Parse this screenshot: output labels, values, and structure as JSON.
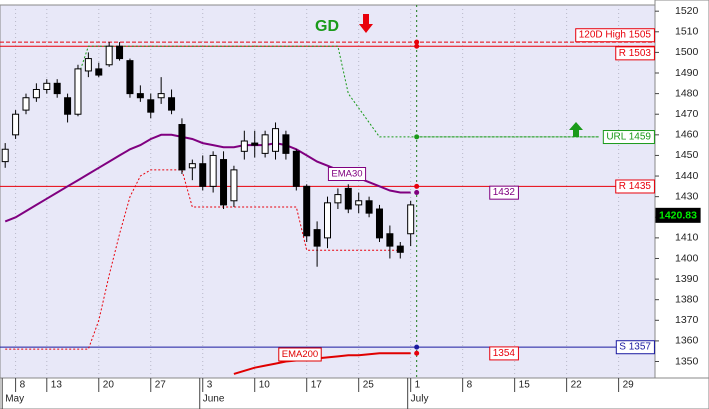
{
  "chart_data": {
    "type": "candlestick",
    "title": "GD",
    "categories": [
      null,
      "8",
      null,
      null,
      "13",
      null,
      null,
      null,
      null,
      "20",
      null,
      null,
      null,
      null,
      "27",
      null,
      null,
      null,
      null,
      "3",
      null,
      null,
      null,
      null,
      "10",
      null,
      null,
      null,
      null,
      "17",
      null,
      null,
      null,
      null,
      "25",
      null,
      null,
      null,
      null,
      "1",
      null,
      null,
      null,
      null,
      "8",
      null,
      null,
      null,
      null,
      "15",
      null,
      null,
      null,
      null,
      "22",
      null,
      null,
      null,
      null,
      "29",
      null,
      null,
      null
    ],
    "month_categories": [
      "May",
      null,
      null,
      null,
      null,
      null,
      null,
      null,
      null,
      null,
      null,
      null,
      null,
      null,
      null,
      null,
      null,
      null,
      null,
      "June",
      null,
      null,
      null,
      null,
      null,
      null,
      null,
      null,
      null,
      null,
      null,
      null,
      null,
      null,
      null,
      null,
      null,
      null,
      null,
      "July",
      null,
      null,
      null,
      null,
      null,
      null,
      null,
      null,
      null,
      null,
      null,
      null,
      null,
      null,
      null,
      null,
      null,
      null,
      null,
      null,
      null,
      null,
      null
    ],
    "open": [
      1447,
      1460,
      1472,
      1478,
      1482,
      1485,
      1478,
      1470,
      1491,
      1492,
      1494,
      1503,
      1496,
      1480,
      1477,
      1478,
      1478,
      1465,
      1444,
      1446,
      1435,
      1448,
      1428,
      1452,
      1456,
      1451,
      1452,
      1460,
      1452,
      1435,
      1414,
      1410,
      1427,
      1434,
      1426,
      1428,
      1424,
      1412,
      1406,
      1412,
      null,
      null,
      null,
      null,
      null,
      null,
      null,
      null,
      null,
      null,
      null,
      null,
      null,
      null,
      null,
      null,
      null,
      null,
      null,
      null,
      null,
      null,
      null
    ],
    "high": [
      1456,
      1472,
      1480,
      1485,
      1487,
      1487,
      1480,
      1494,
      1500,
      1495,
      1505,
      1505,
      1497,
      1484,
      1480,
      1488,
      1482,
      1468,
      1448,
      1450,
      1452,
      1452,
      1445,
      1462,
      1462,
      1462,
      1466,
      1462,
      1453,
      1436,
      1418,
      1430,
      1434,
      1436,
      1432,
      1430,
      1426,
      1416,
      1408,
      1428,
      null,
      null,
      null,
      null,
      null,
      null,
      null,
      null,
      null,
      null,
      null,
      null,
      null,
      null,
      null,
      null,
      null,
      null,
      null,
      null,
      null,
      null,
      null
    ],
    "low": [
      1444,
      1458,
      1470,
      1476,
      1480,
      1478,
      1466,
      1469,
      1488,
      1488,
      1493,
      1496,
      1478,
      1476,
      1468,
      1475,
      1470,
      1441,
      1438,
      1433,
      1432,
      1424,
      1425,
      1448,
      1449,
      1449,
      1448,
      1448,
      1433,
      1408,
      1396,
      1405,
      1424,
      1422,
      1422,
      1420,
      1408,
      1400,
      1400,
      1406,
      null,
      null,
      null,
      null,
      null,
      null,
      null,
      null,
      null,
      null,
      null,
      null,
      null,
      null,
      null,
      null,
      null,
      null,
      null,
      null,
      null,
      null,
      null
    ],
    "close": [
      1453,
      1470,
      1478,
      1482,
      1485,
      1480,
      1470,
      1492,
      1497,
      1489,
      1503,
      1497,
      1480,
      1478,
      1471,
      1480,
      1472,
      1443,
      1446,
      1435,
      1450,
      1426,
      1443,
      1457,
      1455,
      1460,
      1463,
      1451,
      1435,
      1411,
      1406,
      1427,
      1431,
      1424,
      1428,
      1422,
      1410,
      1406,
      1403,
      1426,
      null,
      null,
      null,
      null,
      null,
      null,
      null,
      null,
      null,
      null,
      null,
      null,
      null,
      null,
      null,
      null,
      null,
      null,
      null,
      null,
      null,
      null,
      null
    ],
    "up_color": "#ffffff",
    "down_color": "#000000",
    "lines": [
      {
        "name": "EMA30",
        "color": "#800080",
        "values": [
          1418,
          1420,
          1423,
          1426,
          1429,
          1432,
          1435,
          1438,
          1441,
          1444,
          1447,
          1450,
          1453,
          1455,
          1458,
          1460,
          1460,
          1459,
          1458,
          1456,
          1455,
          1454,
          1454,
          1455,
          1455,
          1455,
          1456,
          1455,
          1453,
          1450,
          1447,
          1445,
          1443,
          1441,
          1439,
          1437,
          1435,
          1433,
          1432,
          1432,
          null,
          null,
          null,
          null,
          null,
          null,
          null,
          null,
          null,
          null,
          null,
          null,
          null,
          null,
          null,
          null,
          null,
          null,
          null,
          null,
          null,
          null,
          null
        ]
      },
      {
        "name": "EMA200",
        "color": "#e00000",
        "values": [
          null,
          null,
          null,
          null,
          null,
          null,
          null,
          null,
          null,
          null,
          null,
          null,
          null,
          null,
          null,
          null,
          null,
          null,
          null,
          null,
          null,
          null,
          1344,
          1345.5,
          1347,
          1348,
          1349,
          1350,
          1350.5,
          1351,
          1351.5,
          1352,
          1352.5,
          1353,
          1353,
          1353.5,
          1354,
          1354,
          1354,
          1354,
          null,
          null,
          null,
          null,
          null,
          null,
          null,
          null,
          null,
          null,
          null,
          null,
          null,
          null,
          null,
          null,
          null,
          null,
          null,
          null,
          null,
          null,
          null
        ]
      },
      {
        "color": "#1a9a1a",
        "dash": true,
        "values": [
          null,
          null,
          null,
          null,
          null,
          null,
          null,
          1488,
          1503,
          1503,
          1503,
          1503,
          1503,
          1503,
          1503,
          1503,
          1503,
          1503,
          1503,
          1503,
          1503,
          1503,
          1503,
          1503,
          1503,
          1503,
          1503,
          1503,
          1503,
          1503,
          1503,
          1503,
          1503,
          1480,
          1473,
          1466,
          1459,
          1459,
          1459,
          1459,
          1459,
          1459,
          1459,
          1459,
          1459,
          1459,
          1459,
          1459,
          1459,
          1459,
          1459,
          1459,
          1459,
          1459,
          1459,
          1459,
          1459,
          1459,
          null,
          null,
          null,
          null,
          null
        ]
      },
      {
        "color": "#e8000b",
        "dash": true,
        "values": [
          1356,
          1356,
          1356,
          1356,
          1356,
          1356,
          1356,
          1356,
          1356,
          1370,
          1392,
          1412,
          1430,
          1440,
          1443,
          1443,
          1443,
          1443,
          1425,
          1425,
          1425,
          1425,
          1425,
          1425,
          1425,
          1425,
          1425,
          1425,
          1425,
          1404,
          1404,
          1404,
          1404,
          1404,
          1404,
          1404,
          1404,
          1404,
          1404,
          null,
          null,
          null,
          null,
          null,
          null,
          null,
          null,
          null,
          null,
          null,
          null,
          null,
          null,
          null,
          null,
          null,
          null,
          null,
          null,
          null,
          null,
          null,
          null
        ]
      }
    ],
    "levels": [
      {
        "label": "120D High 1505",
        "value": 1505,
        "color": "#e8000b",
        "dash": true
      },
      {
        "label": "R 1503",
        "value": 1503,
        "color": "#e8000b"
      },
      {
        "label": "R 1435",
        "value": 1435,
        "color": "#e8000b"
      },
      {
        "label": "S 1357",
        "value": 1357,
        "color": "#1a1aa0"
      }
    ],
    "tags": [
      {
        "label": "URL 1459",
        "value": 1459,
        "color": "#1a9a1a"
      },
      {
        "value": 1432,
        "color": "#800080"
      },
      {
        "value": 1354,
        "color": "#e8000b"
      }
    ],
    "last_price": {
      "value": 1420.83,
      "color": "#00ee00"
    },
    "ylim": [
      1342,
      1523
    ],
    "yticks": [
      1350,
      1360,
      1370,
      1380,
      1390,
      1400,
      1410,
      1420,
      1430,
      1440,
      1450,
      1460,
      1470,
      1480,
      1490,
      1500,
      1510,
      1520
    ],
    "grid": "x"
  }
}
